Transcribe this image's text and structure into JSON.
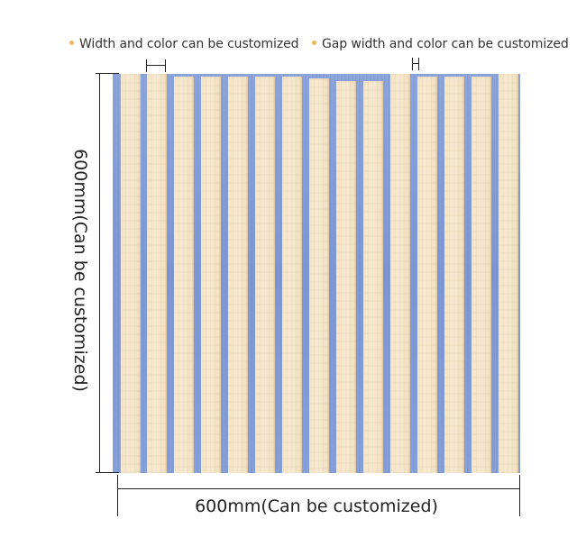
{
  "legend": {
    "item_1": "Width and color can be customized",
    "item_2": "Gap width and color can be customized"
  },
  "dimensions": {
    "width_label": "600mm(Can be customized)",
    "height_label": "600mm(Can be customized)"
  },
  "panel": {
    "slat_count": 15,
    "slat_color": "#f6e7cc",
    "gap_color": "#7e9ad6",
    "bullet_color": "#f0b85c"
  }
}
